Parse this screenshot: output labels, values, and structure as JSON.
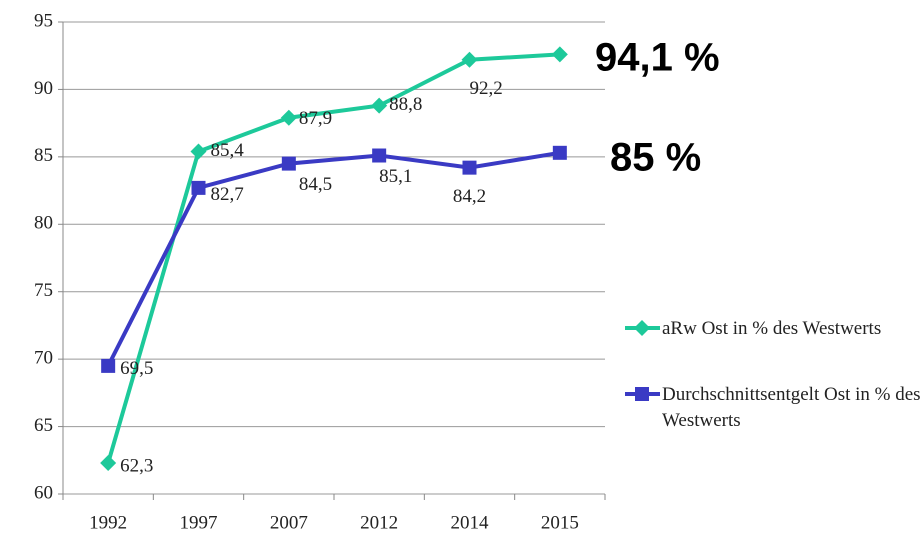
{
  "chart_data": {
    "type": "line",
    "categories": [
      "1992",
      "1997",
      "2007",
      "2012",
      "2014",
      "2015"
    ],
    "series": [
      {
        "name": "aRw Ost in % des Westwerts",
        "color": "#1dc99a",
        "marker": "diamond",
        "values": [
          62.3,
          85.4,
          87.9,
          88.8,
          92.2,
          92.6
        ],
        "value_labels": [
          "62,3",
          "85,4",
          "87,9",
          "88,8",
          "92,2",
          null
        ]
      },
      {
        "name": "Durchschnittsentgelt Ost in % des Westwerts",
        "color": "#3a3ac4",
        "marker": "square",
        "values": [
          69.5,
          82.7,
          84.5,
          85.1,
          84.2,
          85.3
        ],
        "value_labels": [
          "69,5",
          "82,7",
          "84,5",
          "85,1",
          "84,2",
          null
        ]
      }
    ],
    "annotations": [
      "94,1 %",
      "85 %"
    ],
    "ylim": [
      60,
      95
    ],
    "yticks": [
      60,
      65,
      70,
      75,
      80,
      85,
      90,
      95
    ],
    "grid": true,
    "legend": "right"
  }
}
